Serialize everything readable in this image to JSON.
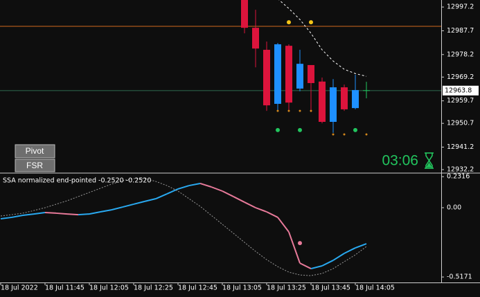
{
  "chart_data": [
    {
      "type": "candlestick",
      "open": [
        13002,
        12988.9,
        12980.1,
        12958.5,
        12981.7,
        12964.6,
        12974.0,
        12967.4,
        12951.3,
        12965.1,
        12956.8,
        12963.8
      ],
      "high": [
        13005,
        12996.1,
        12983.4,
        12982.8,
        12982.3,
        12980.1,
        12974.0,
        12969.0,
        12968.4,
        12966.2,
        12970.1,
        12967.3
      ],
      "low": [
        12986.7,
        12973.1,
        12955.7,
        12955.7,
        12955.7,
        12963.5,
        12955.2,
        12950.7,
        12946.9,
        12955.7,
        12956.3,
        12960.7
      ],
      "close": [
        12988.9,
        12980.6,
        12957.9,
        12982.3,
        12959.0,
        12974.5,
        12966.8,
        12951.3,
        12965.1,
        12956.3,
        12964.0,
        12963.8
      ],
      "up_color": "#1e90ff",
      "down_color": "#dc143c",
      "doji_color": "#22c55e",
      "lines": [
        {
          "color": "#ffffff",
          "style": "dashed",
          "values": [
            null,
            null,
            null,
            13000.5,
            12996.6,
            12992.2,
            12986.7,
            12980.1,
            12975.6,
            12972.3,
            12970.6,
            12969.5
          ]
        }
      ],
      "dots": [
        {
          "color": "#f5c518",
          "size": 3,
          "values": [
            null,
            null,
            null,
            null,
            12991.1,
            null,
            12991.1,
            null,
            null,
            null,
            null,
            null
          ]
        },
        {
          "color": "#d4881c",
          "size": 1.5,
          "values": [
            null,
            null,
            null,
            12955.7,
            12955.7,
            12955.7,
            12955.7,
            null,
            12946.3,
            12946.3,
            null,
            12946.3
          ]
        },
        {
          "color": "#22c55e",
          "size": 3,
          "values": [
            null,
            null,
            null,
            12948.0,
            null,
            12948.0,
            null,
            null,
            null,
            null,
            12948.0,
            null
          ]
        }
      ],
      "hlines": [
        {
          "value": 12989.5,
          "color": "#d2691e"
        }
      ],
      "current_price": 12963.8,
      "current_color": "#2e6b4f",
      "ylim": [
        12931.1,
        13000
      ],
      "yticks": [
        12997.2,
        12987.7,
        12978.2,
        12969.2,
        12959.7,
        12950.7,
        12941.2,
        12932.2
      ]
    },
    {
      "type": "line",
      "title": "SSA normalized end-pointed -0.2520 -0.2520",
      "categories": [
        "18 Jul 2022",
        null,
        null,
        null,
        "18 Jul 11:45",
        null,
        null,
        null,
        "18 Jul 12:05",
        null,
        null,
        null,
        "18 Jul 12:25",
        null,
        null,
        null,
        "18 Jul 12:45",
        null,
        null,
        null,
        "18 Jul 13:05",
        null,
        null,
        null,
        "18 Jul 13:25",
        null,
        null,
        null,
        "18 Jul 13:45",
        null,
        null,
        null,
        "18 Jul 14:05",
        null
      ],
      "series": [
        {
          "color": "#29a9f0",
          "color_down": "#e87a9a",
          "values": [
            -0.083,
            -0.072,
            -0.057,
            -0.047,
            -0.036,
            -0.041,
            -0.047,
            -0.052,
            -0.047,
            -0.031,
            -0.016,
            0.005,
            0.026,
            0.047,
            0.067,
            0.103,
            0.14,
            0.165,
            0.181,
            0.155,
            0.124,
            0.083,
            0.041,
            0,
            -0.031,
            -0.072,
            -0.181,
            -0.414,
            -0.455,
            -0.434,
            -0.393,
            -0.341,
            -0.3,
            -0.269
          ]
        },
        {
          "color": "#9a9a9a",
          "style": "dashed",
          "values": [
            -0.062,
            -0.052,
            -0.041,
            -0.021,
            0,
            0.026,
            0.052,
            0.083,
            0.114,
            0.145,
            0.176,
            0.202,
            0.217,
            0.217,
            0.196,
            0.165,
            0.124,
            0.067,
            0.01,
            -0.057,
            -0.124,
            -0.191,
            -0.259,
            -0.326,
            -0.388,
            -0.44,
            -0.481,
            -0.502,
            -0.507,
            -0.491,
            -0.455,
            -0.403,
            -0.352,
            -0.29
          ]
        }
      ],
      "dots": [
        {
          "color": "#e87a9a",
          "values": [
            null,
            null,
            null,
            null,
            null,
            null,
            null,
            null,
            null,
            null,
            null,
            null,
            null,
            null,
            null,
            null,
            null,
            null,
            null,
            null,
            null,
            null,
            null,
            null,
            null,
            null,
            null,
            -0.264,
            null,
            null,
            null,
            null,
            null,
            null
          ]
        }
      ],
      "ylim": [
        -0.558,
        0.248
      ],
      "yticks": [
        0.2316,
        {
          "value": 0,
          "label": "0.00"
        },
        -0.5171
      ]
    }
  ],
  "controls": {
    "buttons": [
      "Pivot",
      "FSR"
    ],
    "timer": "03:06"
  }
}
